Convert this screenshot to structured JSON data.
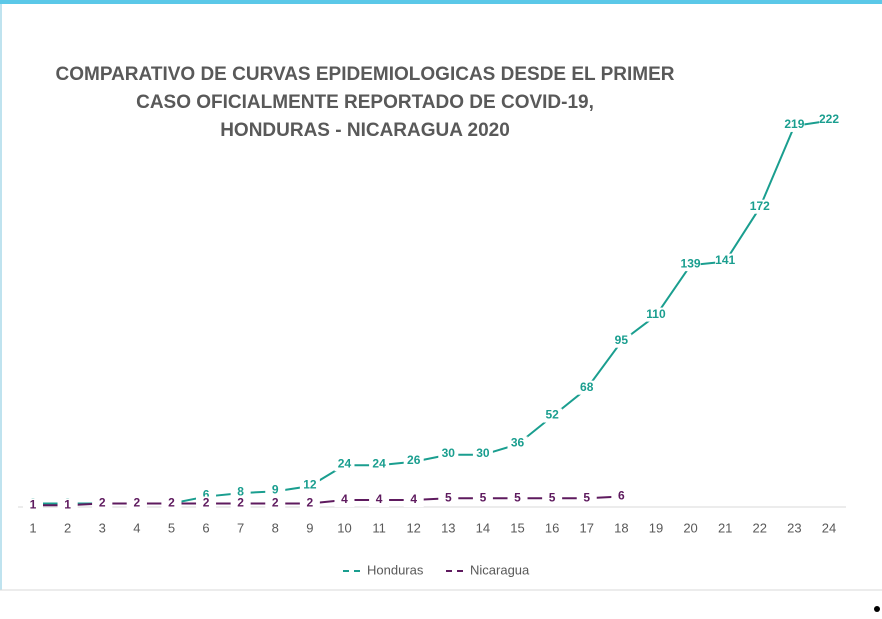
{
  "chart_data": {
    "type": "line",
    "title": [
      "COMPARATIVO DE CURVAS EPIDEMIOLOGICAS DESDE EL PRIMER",
      "CASO OFICIALMENTE REPORTADO DE COVID-19,",
      "HONDURAS - NICARAGUA 2020"
    ],
    "x": [
      1,
      2,
      3,
      4,
      5,
      6,
      7,
      8,
      9,
      10,
      11,
      12,
      13,
      14,
      15,
      16,
      17,
      18,
      19,
      20,
      21,
      22,
      23,
      24
    ],
    "series": [
      {
        "name": "Honduras",
        "color": "#1a9e8f",
        "values": [
          2,
          2,
          2,
          2,
          2,
          6,
          8,
          9,
          12,
          24,
          24,
          26,
          30,
          30,
          36,
          52,
          68,
          95,
          110,
          139,
          141,
          172,
          219,
          222
        ]
      },
      {
        "name": "Nicaragua",
        "color": "#5e1a5e",
        "values": [
          1,
          1,
          2,
          2,
          2,
          2,
          2,
          2,
          2,
          4,
          4,
          4,
          5,
          5,
          5,
          5,
          5,
          6,
          null,
          null,
          null,
          null,
          null,
          null
        ]
      }
    ],
    "ylim": [
      0,
      250
    ],
    "legend": "bottom"
  }
}
